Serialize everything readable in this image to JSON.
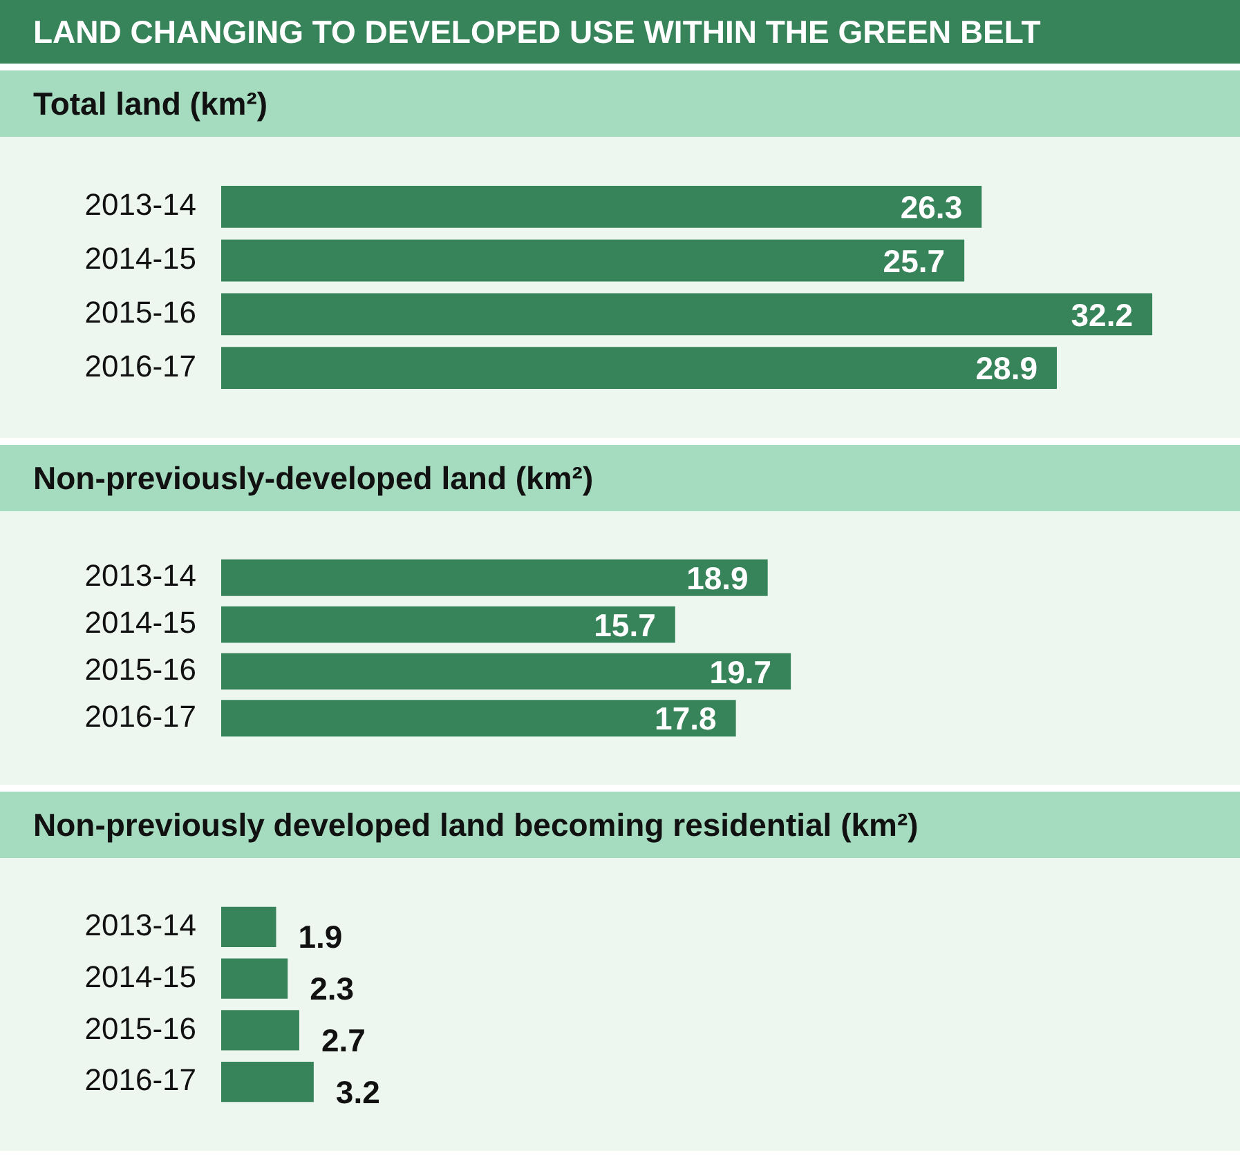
{
  "chart_data": [
    {
      "type": "bar",
      "title": "LAND CHANGING TO DEVELOPED USE WITHIN THE GREEN BELT",
      "subtitle": "Total land (km²)",
      "orientation": "horizontal",
      "categories": [
        "2013-14",
        "2014-15",
        "2015-16",
        "2016-17"
      ],
      "values": [
        26.3,
        25.7,
        32.2,
        28.9
      ],
      "color": "#37845a",
      "data_labels": true,
      "grid": false,
      "tick_labels": "y"
    },
    {
      "type": "bar",
      "title": "Non-previously-developed land (km²)",
      "orientation": "horizontal",
      "categories": [
        "2013-14",
        "2014-15",
        "2015-16",
        "2016-17"
      ],
      "values": [
        18.9,
        15.7,
        19.7,
        17.8
      ],
      "color": "#37845a",
      "data_labels": true,
      "grid": false,
      "tick_labels": "y"
    },
    {
      "type": "bar",
      "title": "Non-previously developed land becoming residential (km²)",
      "orientation": "horizontal",
      "categories": [
        "2013-14",
        "2014-15",
        "2015-16",
        "2016-17"
      ],
      "values": [
        1.9,
        2.3,
        2.7,
        3.2
      ],
      "color": "#37845a",
      "data_labels": true,
      "grid": false,
      "tick_labels": "y"
    }
  ]
}
